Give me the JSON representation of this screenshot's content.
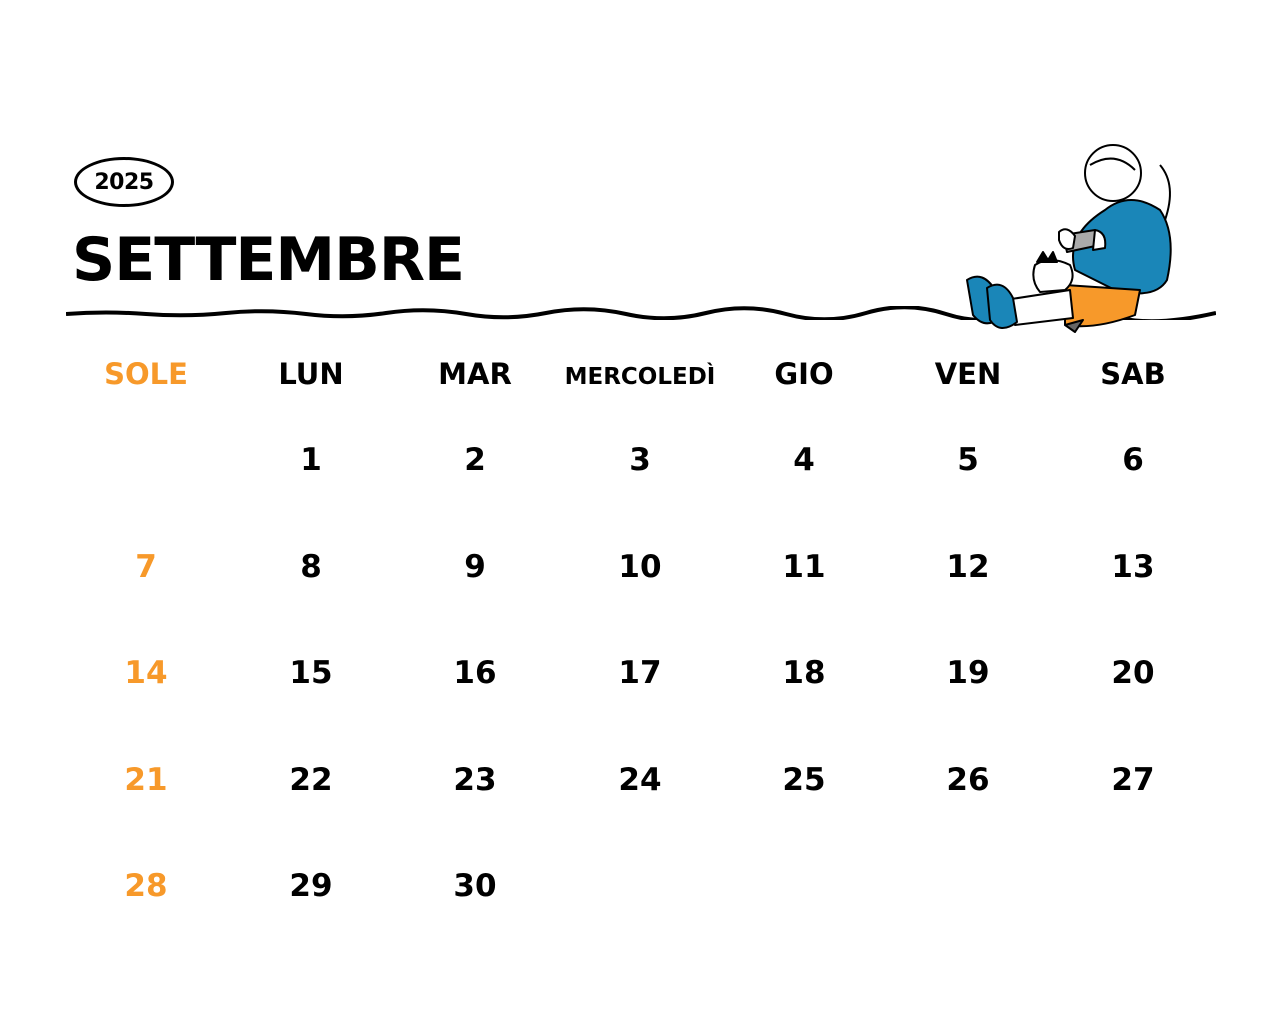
{
  "calendar": {
    "year": "2025",
    "month": "SETTEMBRE",
    "weekdays": [
      "SOLE",
      "LUN",
      "MAR",
      "MERCOLEDÌ",
      "GIO",
      "VEN",
      "SAB"
    ],
    "weeks": [
      [
        "",
        "1",
        "2",
        "3",
        "4",
        "5",
        "6"
      ],
      [
        "7",
        "8",
        "9",
        "10",
        "11",
        "12",
        "13"
      ],
      [
        "14",
        "15",
        "16",
        "17",
        "18",
        "19",
        "20"
      ],
      [
        "21",
        "22",
        "23",
        "24",
        "25",
        "26",
        "27"
      ],
      [
        "28",
        "29",
        "30",
        "",
        "",
        "",
        ""
      ]
    ]
  },
  "colors": {
    "sunday": "#f7992a",
    "text": "#000000",
    "hoodie": "#1a86b8",
    "shorts": "#f7992a"
  },
  "illustration": "girl-with-cat-icon"
}
